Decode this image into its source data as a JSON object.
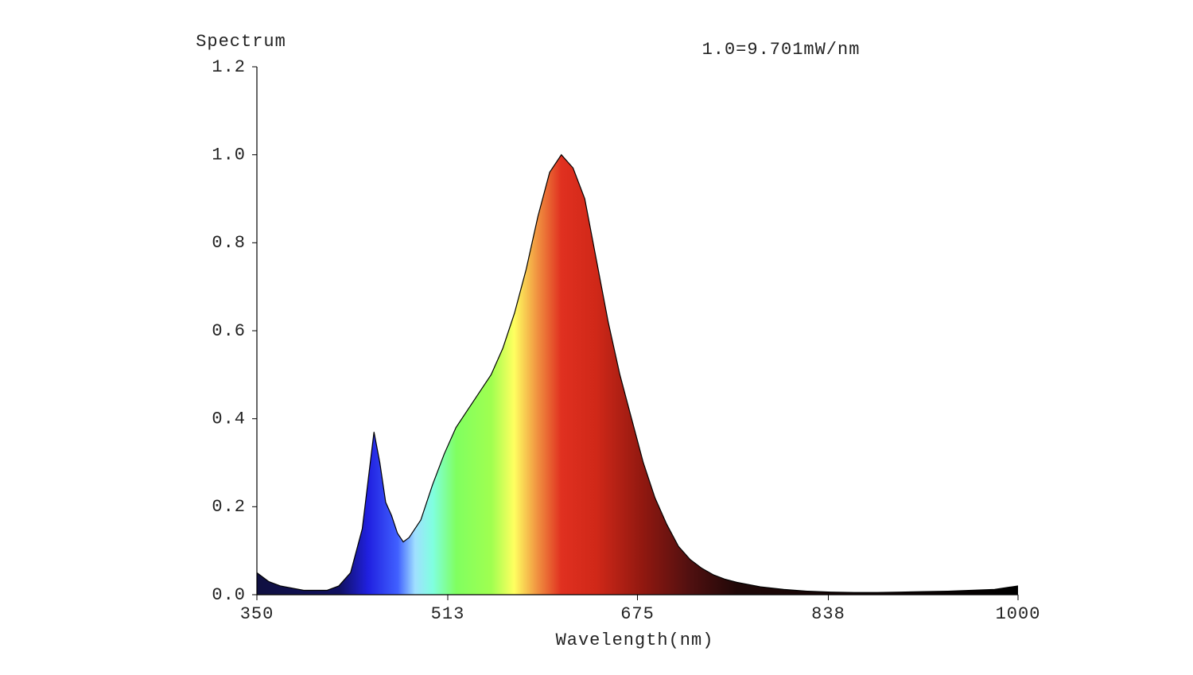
{
  "chart_data": {
    "type": "area",
    "ylabel": "Spectrum",
    "annotation": "1.0=9.701mW/nm",
    "xlabel": "Wavelength(nm)",
    "x": [
      350,
      360,
      370,
      380,
      390,
      400,
      410,
      420,
      430,
      440,
      445,
      450,
      455,
      460,
      465,
      470,
      475,
      480,
      490,
      500,
      510,
      520,
      530,
      540,
      550,
      560,
      570,
      580,
      590,
      600,
      610,
      620,
      630,
      640,
      650,
      660,
      670,
      680,
      690,
      700,
      710,
      720,
      730,
      740,
      750,
      760,
      780,
      800,
      820,
      840,
      860,
      880,
      900,
      920,
      940,
      960,
      980,
      1000
    ],
    "series": [
      {
        "color": "#000000",
        "values": [
          0.05,
          0.03,
          0.02,
          0.015,
          0.01,
          0.01,
          0.01,
          0.02,
          0.05,
          0.15,
          0.26,
          0.37,
          0.3,
          0.21,
          0.18,
          0.14,
          0.12,
          0.13,
          0.17,
          0.25,
          0.32,
          0.38,
          0.42,
          0.46,
          0.5,
          0.56,
          0.64,
          0.74,
          0.86,
          0.96,
          1.0,
          0.97,
          0.9,
          0.76,
          0.62,
          0.5,
          0.4,
          0.3,
          0.22,
          0.16,
          0.11,
          0.08,
          0.06,
          0.045,
          0.035,
          0.028,
          0.018,
          0.012,
          0.008,
          0.006,
          0.005,
          0.005,
          0.006,
          0.007,
          0.008,
          0.01,
          0.012,
          0.02
        ]
      }
    ],
    "xlim": [
      350,
      1000
    ],
    "xticks": [
      350,
      513,
      675,
      838,
      1000
    ],
    "ylim": [
      0,
      1.2
    ],
    "yticks": [
      {
        "value": 0,
        "label": "0.0"
      },
      0.2,
      0.4,
      0.6,
      0.8,
      {
        "value": 1,
        "label": "1.0"
      },
      1.2
    ]
  }
}
